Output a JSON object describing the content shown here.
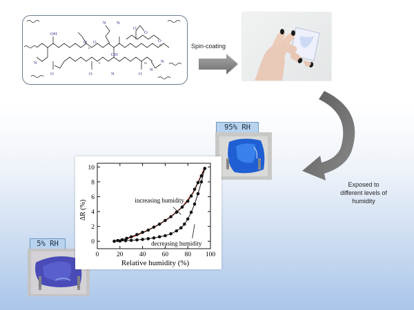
{
  "process": {
    "spin_coating": "Spin-coating",
    "exposed_caption": [
      "Exposed to",
      "different levels of",
      "humidity"
    ]
  },
  "samples": {
    "high_label": "95% RH",
    "low_label": "5% RH"
  },
  "structure": {
    "atom_letters": [
      "OH",
      "O",
      "O",
      "OH",
      "N",
      "N",
      "N",
      "N",
      "O",
      "O",
      "O",
      "O",
      "O",
      "O",
      "N",
      "N",
      "n",
      "m",
      "n",
      "m"
    ]
  },
  "chart_data": {
    "type": "scatter",
    "title": "",
    "xlabel": "Relative humidity (%)",
    "ylabel": "ΔR (%)",
    "xlim": [
      0,
      100
    ],
    "ylim": [
      -1,
      10.5
    ],
    "xticks": [
      0,
      20,
      40,
      60,
      80,
      100
    ],
    "yticks": [
      0,
      2,
      4,
      6,
      8,
      10
    ],
    "grid": false,
    "annotations": [
      "increasing humidity",
      "decreasing humidity"
    ],
    "series": [
      {
        "color": "#111111",
        "x": [
          15,
          18,
          22,
          26,
          30,
          35,
          40,
          45,
          50,
          55,
          60,
          65,
          70,
          75,
          80,
          83,
          86,
          89,
          92,
          95
        ],
        "y": [
          0.0,
          0.1,
          0.2,
          0.4,
          0.6,
          0.9,
          1.2,
          1.5,
          1.9,
          2.3,
          2.8,
          3.3,
          3.9,
          4.6,
          5.4,
          6.1,
          7.0,
          7.9,
          8.8,
          9.8
        ]
      },
      {
        "color": "#111111",
        "x": [
          95,
          92,
          89,
          86,
          83,
          80,
          77,
          74,
          70,
          65,
          60,
          55,
          50,
          45,
          40,
          35,
          30,
          25,
          20,
          15
        ],
        "y": [
          9.8,
          8.0,
          6.4,
          5.0,
          3.9,
          3.0,
          2.3,
          1.8,
          1.4,
          1.0,
          0.75,
          0.6,
          0.45,
          0.35,
          0.25,
          0.18,
          0.12,
          0.08,
          0.04,
          0.0
        ]
      },
      {
        "color": "#c0392b",
        "x": [
          15,
          25,
          35,
          45,
          55,
          65,
          75,
          85,
          95
        ],
        "y": [
          0.0,
          0.3,
          0.8,
          1.5,
          2.3,
          3.3,
          4.6,
          6.6,
          9.9
        ]
      }
    ]
  }
}
